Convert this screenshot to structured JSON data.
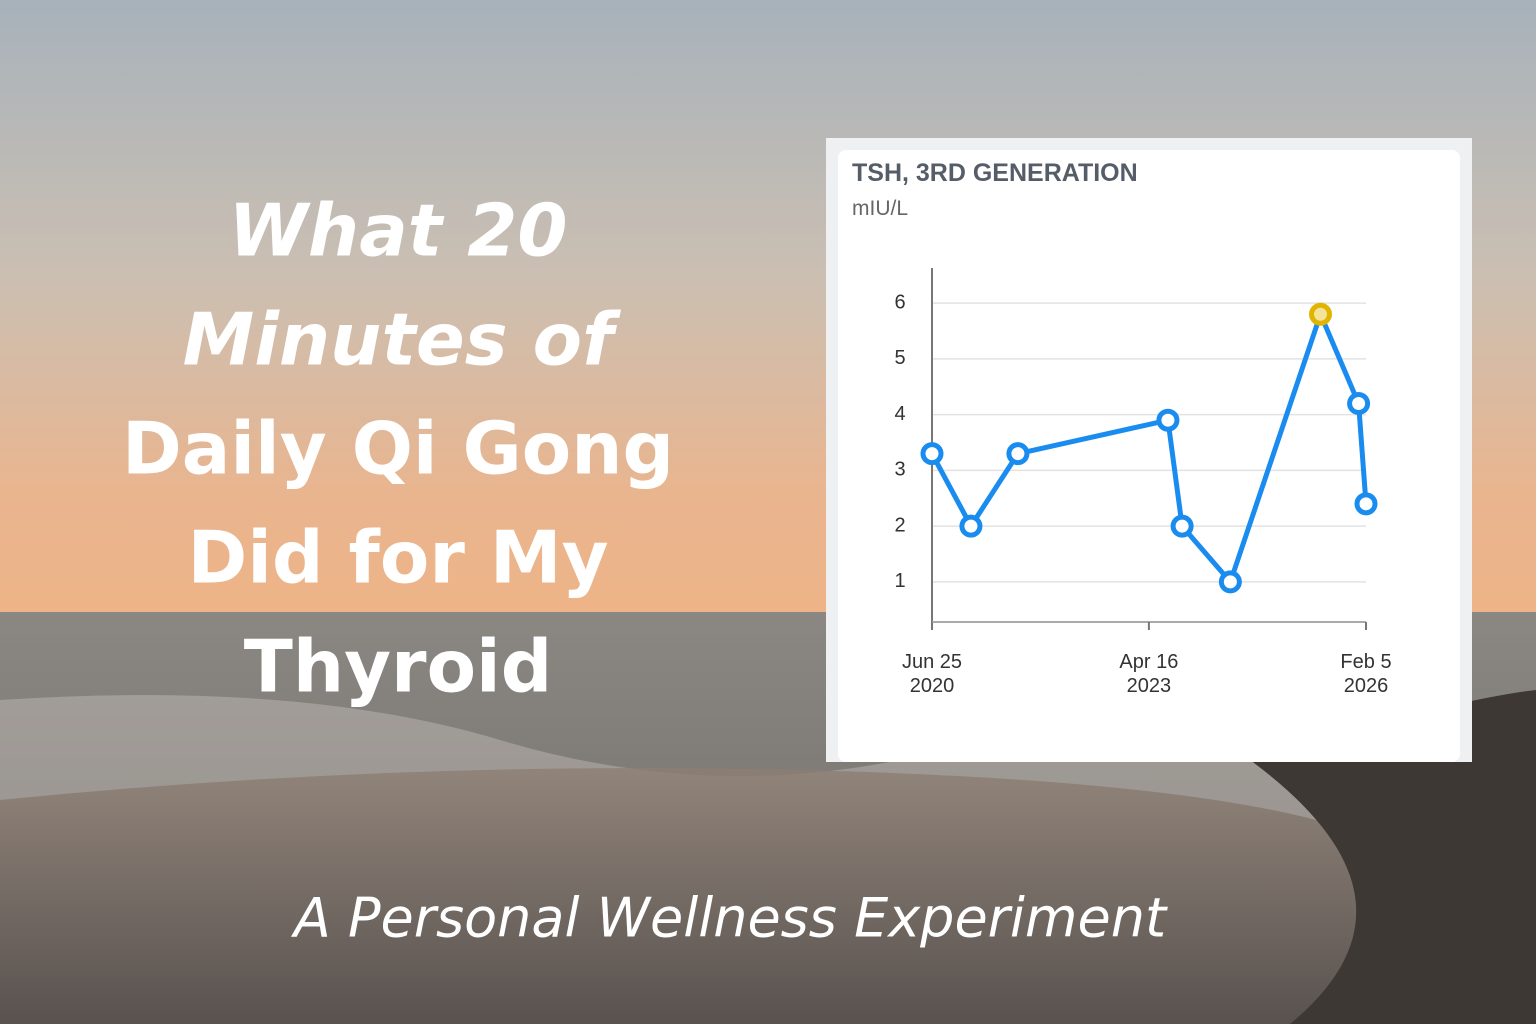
{
  "title_lines": [
    "What 20",
    "Minutes of",
    "Daily Qi Gong",
    "Did for My",
    "Thyroid"
  ],
  "subtitle": "A Personal Wellness Experiment",
  "chart_data": {
    "type": "line",
    "title": "TSH, 3RD GENERATION",
    "unit": "mIU/L",
    "x": [
      "2020-06-25",
      "2020-12-26",
      "2021-08-05",
      "2023-07-15",
      "2023-09-20",
      "2024-05-05",
      "2025-07-05",
      "2026-01-01",
      "2026-02-05"
    ],
    "series": [
      {
        "name": "TSH",
        "color": "#1a8cf0",
        "values": [
          3.3,
          2.0,
          3.3,
          3.9,
          2.0,
          1.0,
          5.8,
          4.2,
          2.4
        ]
      }
    ],
    "highlight": {
      "index": 6,
      "color": "#e0b400"
    },
    "xlim": [
      "2020-06-25",
      "2026-02-05"
    ],
    "xticks": [
      {
        "value": "2020-06-25",
        "label": "Jun 25\n2020"
      },
      {
        "value": "2023-04-16",
        "label": "Apr 16\n2023"
      },
      {
        "value": "2026-02-05",
        "label": "Feb 5\n2026"
      }
    ],
    "ylim": [
      0.28,
      6.63
    ],
    "yticks": [
      1,
      2,
      3,
      4,
      5,
      6
    ],
    "grid": true
  }
}
